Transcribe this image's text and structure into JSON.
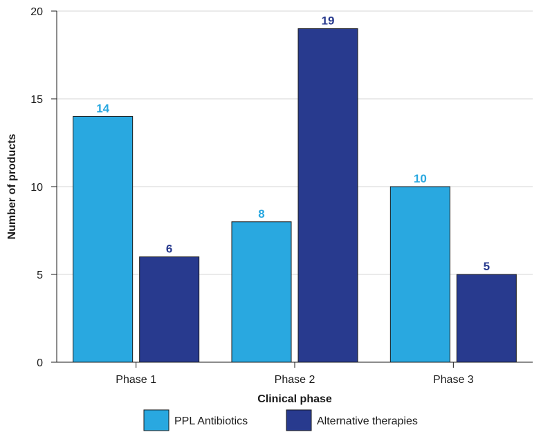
{
  "chart_data": {
    "type": "bar",
    "categories": [
      "Phase 1",
      "Phase 2",
      "Phase 3"
    ],
    "series": [
      {
        "name": "PPL Antibiotics",
        "values": [
          14,
          8,
          10
        ],
        "color": "#29a8e0",
        "label_color": "#29a8e0"
      },
      {
        "name": "Alternative therapies",
        "values": [
          6,
          19,
          5
        ],
        "color": "#283a8e",
        "label_color": "#283a8e"
      }
    ],
    "xlabel": "Clinical phase",
    "ylabel": "Number of products",
    "ylim": [
      0,
      20
    ],
    "yticks": [
      0,
      5,
      10,
      15,
      20
    ],
    "grid": true,
    "legend_position": "bottom-center"
  }
}
